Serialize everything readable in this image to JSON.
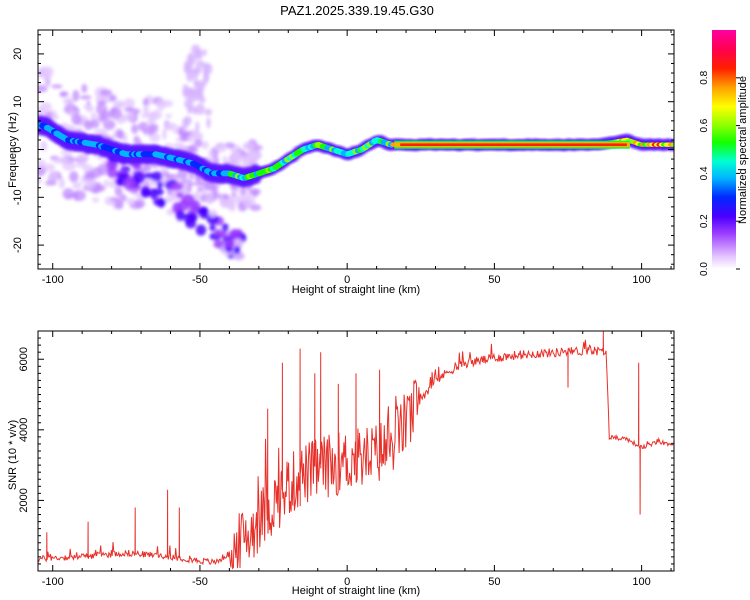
{
  "title": "PAZ1.2025.339.19.45.G30",
  "chart_data": [
    {
      "type": "heatmap",
      "name": "spectrogram",
      "xlabel": "Height of straight line (km)",
      "ylabel": "Frequency (Hz)",
      "xlim": [
        -105,
        111
      ],
      "ylim": [
        -25,
        25
      ],
      "xticks": [
        -100,
        -50,
        0,
        50,
        100
      ],
      "yticks": [
        -20,
        -10,
        0,
        10,
        20
      ],
      "colorbar": {
        "label": "Normalized spectral amplitude",
        "range": [
          0,
          1
        ],
        "ticks": [
          "0.0",
          "0.2",
          "0.4",
          "0.6",
          "0.8"
        ],
        "tick_values": [
          0.0,
          0.2,
          0.4,
          0.6,
          0.8
        ]
      },
      "ridge": {
        "description_values": "main frequency ridge (Hz) vs height (km)",
        "x": [
          -103,
          -95,
          -85,
          -75,
          -65,
          -58,
          -52,
          -46,
          -40,
          -35,
          -30,
          -25,
          -20,
          -15,
          -10,
          -5,
          0,
          5,
          10,
          15,
          20,
          30,
          50,
          70,
          85,
          95,
          100,
          105,
          111
        ],
        "y": [
          5,
          2,
          1,
          -1,
          -1,
          -2,
          -3,
          -5,
          -5,
          -6,
          -5,
          -4,
          -2,
          0,
          1,
          0,
          -1,
          0,
          2,
          1,
          1,
          1,
          1,
          1,
          1,
          2,
          1,
          1,
          1
        ]
      },
      "secondary_branch": {
        "x": [
          -80,
          -70,
          -62,
          -55,
          -48,
          -42,
          -36
        ],
        "y": [
          -3,
          -6,
          -9,
          -12,
          -15,
          -18,
          -20
        ]
      }
    },
    {
      "type": "line",
      "name": "snr",
      "xlabel": "Height of straight line (km)",
      "ylabel": "SNR (10 * v/v)",
      "xlim": [
        -105,
        111
      ],
      "ylim": [
        0,
        6800
      ],
      "xticks": [
        -100,
        -50,
        0,
        50,
        100
      ],
      "yticks": [
        2000,
        4000,
        6000
      ],
      "color": "#e8302a",
      "trend": {
        "x": [
          -105,
          -90,
          -75,
          -60,
          -50,
          -45,
          -40,
          -35,
          -30,
          -25,
          -20,
          -15,
          -10,
          -5,
          0,
          5,
          10,
          15,
          20,
          25,
          30,
          35,
          40,
          50,
          60,
          70,
          80,
          85,
          88,
          89,
          95,
          100,
          105,
          111
        ],
        "y": [
          350,
          420,
          520,
          420,
          300,
          250,
          500,
          1000,
          1500,
          2000,
          2500,
          2800,
          3000,
          3100,
          3200,
          3300,
          3400,
          3700,
          4300,
          4900,
          5400,
          5700,
          5900,
          6050,
          6150,
          6200,
          6250,
          6250,
          6200,
          3800,
          3750,
          3500,
          3650,
          3600
        ]
      },
      "spikes": [
        {
          "x": -102,
          "y": 1100
        },
        {
          "x": -88,
          "y": 1400
        },
        {
          "x": -72,
          "y": 1800
        },
        {
          "x": -61,
          "y": 2300
        },
        {
          "x": -57,
          "y": 1800
        },
        {
          "x": -27,
          "y": 4600
        },
        {
          "x": -22,
          "y": 5900
        },
        {
          "x": -16,
          "y": 6300
        },
        {
          "x": -11,
          "y": 5600
        },
        {
          "x": -9,
          "y": 6200
        },
        {
          "x": -3,
          "y": 5300
        },
        {
          "x": 3,
          "y": 5600
        },
        {
          "x": 11,
          "y": 5700
        },
        {
          "x": 75,
          "y": 5200
        },
        {
          "x": 87,
          "y": 6800
        },
        {
          "x": 99,
          "y": 5900
        },
        {
          "x": 99.5,
          "y": 1600
        }
      ]
    }
  ]
}
